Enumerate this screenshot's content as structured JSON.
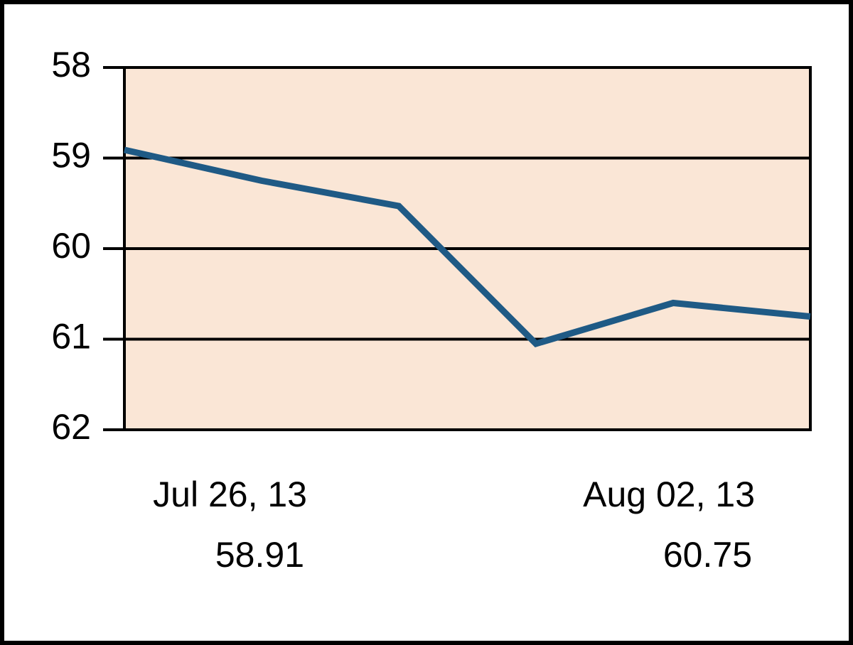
{
  "chart_data": {
    "type": "line",
    "categories": [
      "Jul 26, 13",
      null,
      null,
      null,
      null,
      "Aug 02, 13"
    ],
    "values": [
      58.91,
      59.25,
      59.53,
      61.05,
      60.6,
      60.75
    ],
    "color": "#1f5a85",
    "ylim": [
      62,
      58
    ],
    "yticks": [
      58,
      59,
      60,
      61,
      62
    ],
    "grid": true
  }
}
